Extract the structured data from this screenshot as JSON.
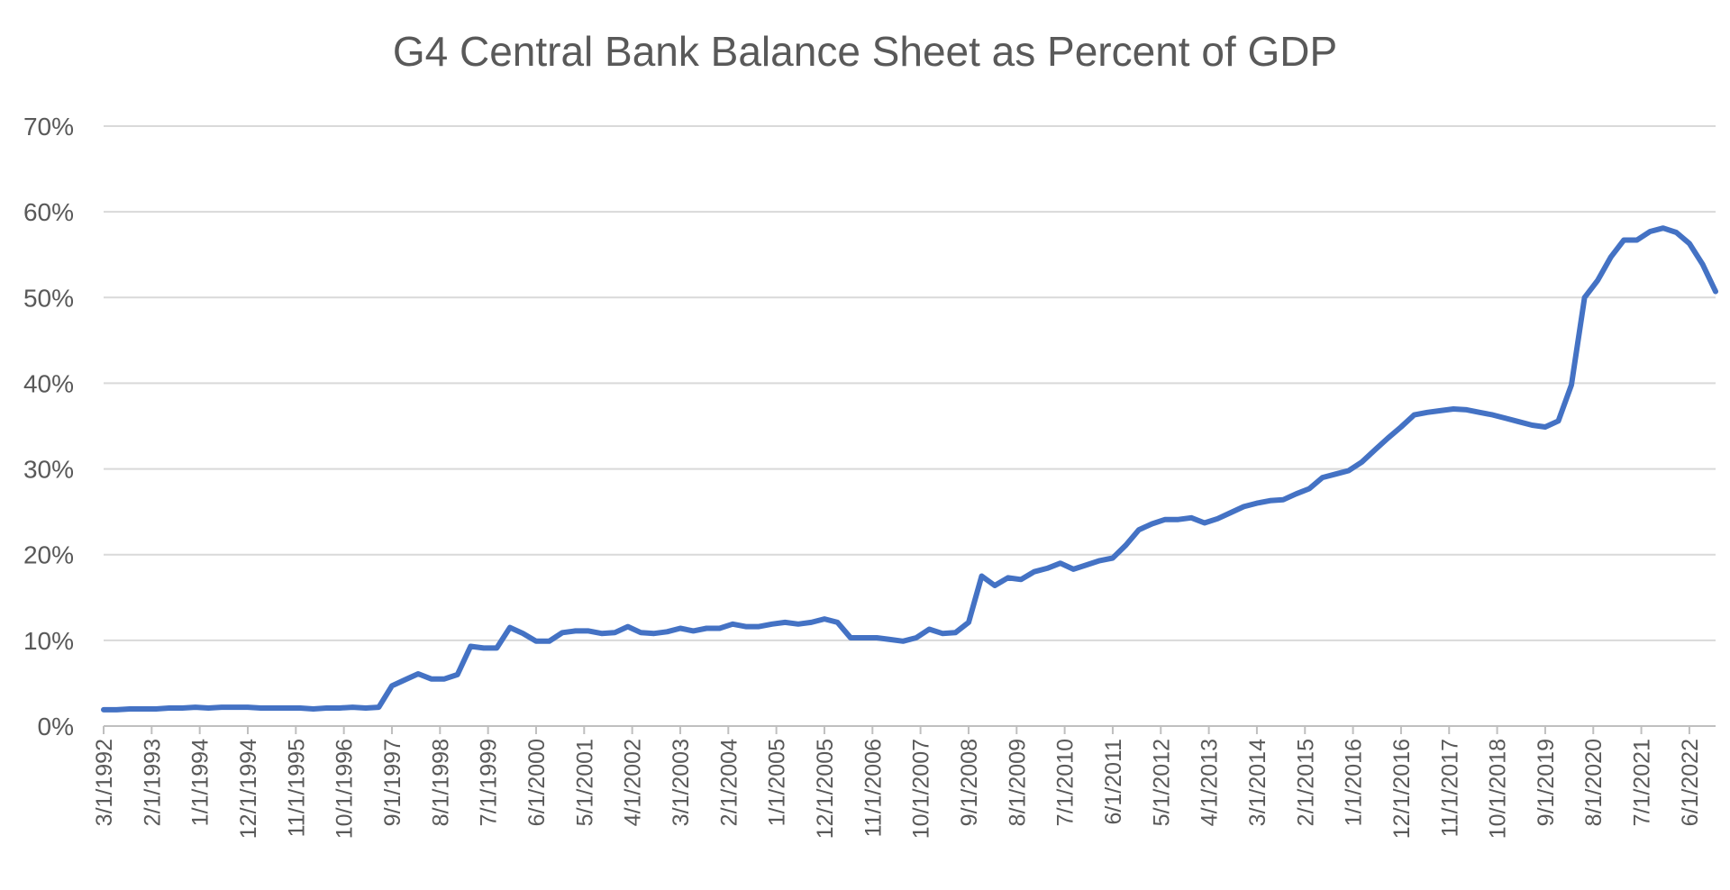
{
  "chart_data": {
    "type": "line",
    "title": "G4 Central Bank Balance Sheet as Percent of GDP",
    "xlabel": "",
    "ylabel": "",
    "ylim": [
      0,
      70
    ],
    "yticks": [
      "0%",
      "10%",
      "20%",
      "30%",
      "40%",
      "50%",
      "60%",
      "70%"
    ],
    "xtick_labels": [
      "3/1/1992",
      "2/1/1993",
      "1/1/1994",
      "12/1/1994",
      "11/1/1995",
      "10/1/1996",
      "9/1/1997",
      "8/1/1998",
      "7/1/1999",
      "6/1/2000",
      "5/1/2001",
      "4/1/2002",
      "3/1/2003",
      "2/1/2004",
      "1/1/2005",
      "12/1/2005",
      "11/1/2006",
      "10/1/2007",
      "9/1/2008",
      "8/1/2009",
      "7/1/2010",
      "6/1/2011",
      "5/1/2012",
      "4/1/2013",
      "3/1/2014",
      "2/1/2015",
      "1/1/2016",
      "12/1/2016",
      "11/1/2017",
      "10/1/2018",
      "9/1/2019",
      "8/1/2020",
      "7/1/2021",
      "6/1/2022"
    ],
    "grid": true,
    "legend": "none",
    "line_color": "#4472c4",
    "series": [
      {
        "x": [
          "3/1/1992",
          "6/1/1992",
          "9/1/1992",
          "12/1/1992",
          "3/1/1993",
          "6/1/1993",
          "9/1/1993",
          "12/1/1993",
          "3/1/1994",
          "6/1/1994",
          "9/1/1994",
          "12/1/1994",
          "3/1/1995",
          "6/1/1995",
          "9/1/1995",
          "12/1/1995",
          "3/1/1996",
          "6/1/1996",
          "9/1/1996",
          "12/1/1996",
          "3/1/1997",
          "6/1/1997",
          "9/1/1997",
          "12/1/1997",
          "3/1/1998",
          "6/1/1998",
          "9/1/1998",
          "12/1/1998",
          "3/1/1999",
          "6/1/1999",
          "9/1/1999",
          "12/1/1999",
          "3/1/2000",
          "6/1/2000",
          "9/1/2000",
          "12/1/2000",
          "3/1/2001",
          "6/1/2001",
          "9/1/2001",
          "12/1/2001",
          "3/1/2002",
          "6/1/2002",
          "9/1/2002",
          "12/1/2002",
          "3/1/2003",
          "6/1/2003",
          "9/1/2003",
          "12/1/2003",
          "3/1/2004",
          "6/1/2004",
          "9/1/2004",
          "12/1/2004",
          "3/1/2005",
          "6/1/2005",
          "9/1/2005",
          "12/1/2005",
          "3/1/2006",
          "6/1/2006",
          "9/1/2006",
          "12/1/2006",
          "3/1/2007",
          "6/1/2007",
          "9/1/2007",
          "12/1/2007",
          "3/1/2008",
          "6/1/2008",
          "9/1/2008",
          "12/1/2008",
          "3/1/2009",
          "6/1/2009",
          "9/1/2009",
          "12/1/2009",
          "3/1/2010",
          "6/1/2010",
          "9/1/2010",
          "12/1/2010",
          "3/1/2011",
          "6/1/2011",
          "9/1/2011",
          "12/1/2011",
          "3/1/2012",
          "6/1/2012",
          "9/1/2012",
          "12/1/2012",
          "3/1/2013",
          "6/1/2013",
          "9/1/2013",
          "12/1/2013",
          "3/1/2014",
          "6/1/2014",
          "9/1/2014",
          "12/1/2014",
          "3/1/2015",
          "6/1/2015",
          "9/1/2015",
          "12/1/2015",
          "3/1/2016",
          "6/1/2016",
          "9/1/2016",
          "12/1/2016",
          "3/1/2017",
          "6/1/2017",
          "9/1/2017",
          "12/1/2017",
          "3/1/2018",
          "6/1/2018",
          "9/1/2018",
          "12/1/2018",
          "3/1/2019",
          "6/1/2019",
          "9/1/2019",
          "12/1/2019",
          "3/1/2020",
          "6/1/2020",
          "9/1/2020",
          "12/1/2020",
          "3/1/2021",
          "6/1/2021",
          "9/1/2021",
          "12/1/2021",
          "3/1/2022",
          "6/1/2022",
          "9/1/2022",
          "12/1/2022"
        ],
        "values": [
          1.9,
          1.9,
          2.0,
          2.0,
          2.0,
          2.1,
          2.1,
          2.2,
          2.1,
          2.2,
          2.2,
          2.2,
          2.1,
          2.1,
          2.1,
          2.1,
          2.0,
          2.1,
          2.1,
          2.2,
          2.1,
          2.2,
          4.7,
          5.4,
          6.1,
          5.5,
          5.5,
          6.0,
          9.3,
          9.1,
          9.1,
          11.5,
          10.8,
          9.9,
          9.9,
          10.9,
          11.1,
          11.1,
          10.8,
          10.9,
          11.6,
          10.9,
          10.8,
          11.0,
          11.4,
          11.1,
          11.4,
          11.4,
          11.9,
          11.6,
          11.6,
          11.9,
          12.1,
          11.9,
          12.1,
          12.5,
          12.1,
          10.3,
          10.3,
          10.3,
          10.1,
          9.9,
          10.3,
          11.3,
          10.8,
          10.9,
          12.1,
          17.5,
          16.4,
          17.3,
          17.1,
          18.0,
          18.4,
          19.0,
          18.3,
          18.8,
          19.3,
          19.6,
          21.1,
          22.9,
          23.6,
          24.1,
          24.1,
          24.3,
          23.7,
          24.2,
          24.9,
          25.6,
          26.0,
          26.3,
          26.4,
          27.1,
          27.7,
          29.0,
          29.4,
          29.8,
          30.8,
          32.2,
          33.6,
          34.9,
          36.3,
          36.6,
          36.8,
          37.0,
          36.9,
          36.6,
          36.3,
          35.9,
          35.5,
          35.1,
          34.9,
          35.6,
          39.8,
          50.0,
          52.0,
          54.7,
          56.7,
          56.7,
          57.7,
          58.1,
          57.6,
          56.3,
          53.9,
          50.7
        ]
      }
    ]
  }
}
